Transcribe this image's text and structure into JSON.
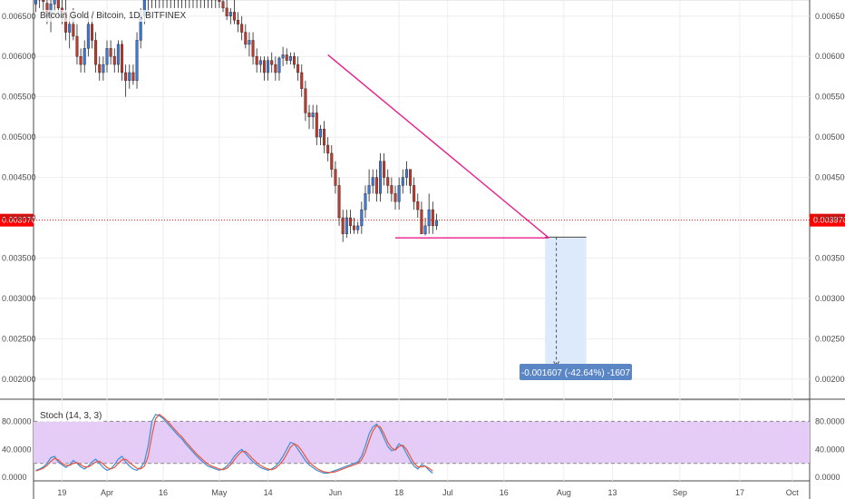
{
  "colors": {
    "up": "#3c78d8",
    "down": "#c0392b",
    "wick": "#222222",
    "trendline": "#e91e8c",
    "price_line": "#ff0000",
    "stoch_k": "#3a8fd9",
    "stoch_d": "#e8553c",
    "stoch_band": "#e4ccf7",
    "measure_fill": "#dceafb",
    "measure_label_bg": "#5b86c6"
  },
  "chart_data": [
    {
      "type": "candlestick",
      "title": "Bitcoin Gold / Bitcoin, 1D, BITFINEX",
      "ylim": [
        0.00175,
        0.0067
      ],
      "y_ticks": [
        "0.006500",
        "0.006000",
        "0.005500",
        "0.005000",
        "0.004500",
        "0.004000",
        "0.003500",
        "0.003000",
        "0.002500",
        "0.002000"
      ],
      "y_tick_values": [
        0.0065,
        0.006,
        0.0055,
        0.005,
        0.0045,
        0.004,
        0.0035,
        0.003,
        0.0025,
        0.002
      ],
      "x_ticks": [
        "19",
        "Apr",
        "16",
        "May",
        "14",
        "Jun",
        "18",
        "Jul",
        "16",
        "Aug",
        "13",
        "Sep",
        "17",
        "Oct"
      ],
      "x_tick_days": [
        -12,
        0,
        15,
        30,
        43,
        61,
        78,
        91,
        106,
        122,
        135,
        153,
        169,
        183
      ],
      "first_candle_day": -19,
      "candles": [
        [
          0.00665,
          0.0069,
          0.00655,
          0.0068
        ],
        [
          0.00675,
          0.0069,
          0.0066,
          0.0067
        ],
        [
          0.0067,
          0.0069,
          0.00655,
          0.00668
        ],
        [
          0.00666,
          0.0068,
          0.0064,
          0.0065
        ],
        [
          0.0065,
          0.0067,
          0.0063,
          0.00665
        ],
        [
          0.00665,
          0.0068,
          0.0065,
          0.00672
        ],
        [
          0.00672,
          0.0069,
          0.0065,
          0.0066
        ],
        [
          0.0066,
          0.0068,
          0.0064,
          0.00655
        ],
        [
          0.00655,
          0.0067,
          0.0062,
          0.0063
        ],
        [
          0.0063,
          0.0065,
          0.0061,
          0.0064
        ],
        [
          0.0064,
          0.0066,
          0.0062,
          0.00625
        ],
        [
          0.00625,
          0.0064,
          0.0059,
          0.006
        ],
        [
          0.006,
          0.0061,
          0.0058,
          0.0059
        ],
        [
          0.0059,
          0.0062,
          0.0058,
          0.0061
        ],
        [
          0.0061,
          0.0065,
          0.006,
          0.0064
        ],
        [
          0.0064,
          0.0065,
          0.0061,
          0.0062
        ],
        [
          0.0062,
          0.0063,
          0.0058,
          0.0059
        ],
        [
          0.0059,
          0.006,
          0.0057,
          0.0058
        ],
        [
          0.0058,
          0.006,
          0.0057,
          0.0059
        ],
        [
          0.0059,
          0.0062,
          0.0058,
          0.0061
        ],
        [
          0.0061,
          0.0062,
          0.0059,
          0.006
        ],
        [
          0.006,
          0.0061,
          0.0058,
          0.0059
        ],
        [
          0.0059,
          0.0062,
          0.0058,
          0.00615
        ],
        [
          0.00615,
          0.0062,
          0.0057,
          0.0058
        ],
        [
          0.0058,
          0.0059,
          0.0055,
          0.0057
        ],
        [
          0.0057,
          0.0059,
          0.0056,
          0.0058
        ],
        [
          0.0058,
          0.0059,
          0.00565,
          0.0057
        ],
        [
          0.0057,
          0.0063,
          0.0056,
          0.0062
        ],
        [
          0.0062,
          0.0066,
          0.0061,
          0.0065
        ],
        [
          0.0065,
          0.0068,
          0.0064,
          0.0067
        ],
        [
          0.0067,
          0.0069,
          0.0065,
          0.0068
        ],
        [
          0.00685,
          0.0069,
          0.0066,
          0.0067
        ],
        [
          0.0067,
          0.0069,
          0.0066,
          0.00685
        ],
        [
          0.00685,
          0.0069,
          0.0066,
          0.0067
        ],
        [
          0.0067,
          0.0069,
          0.0066,
          0.00685
        ],
        [
          0.00685,
          0.0069,
          0.0066,
          0.0067
        ],
        [
          0.0067,
          0.0069,
          0.0066,
          0.00685
        ],
        [
          0.00685,
          0.0069,
          0.0066,
          0.0067
        ],
        [
          0.0067,
          0.0069,
          0.0066,
          0.00685
        ],
        [
          0.00685,
          0.0069,
          0.0066,
          0.0067
        ],
        [
          0.0067,
          0.0069,
          0.0066,
          0.00685
        ],
        [
          0.00685,
          0.0069,
          0.0066,
          0.0067
        ],
        [
          0.0067,
          0.0069,
          0.0066,
          0.00685
        ],
        [
          0.00685,
          0.0069,
          0.0066,
          0.0067
        ],
        [
          0.0067,
          0.0069,
          0.0066,
          0.00685
        ],
        [
          0.00685,
          0.0069,
          0.0066,
          0.0067
        ],
        [
          0.0067,
          0.0069,
          0.0066,
          0.00685
        ],
        [
          0.00685,
          0.0069,
          0.0066,
          0.0067
        ],
        [
          0.0067,
          0.0069,
          0.0066,
          0.00685
        ],
        [
          0.0067,
          0.0069,
          0.0066,
          0.00668
        ],
        [
          0.00668,
          0.00685,
          0.00655,
          0.0066
        ],
        [
          0.0066,
          0.0067,
          0.00645,
          0.0065
        ],
        [
          0.0065,
          0.0066,
          0.0064,
          0.00655
        ],
        [
          0.00655,
          0.0067,
          0.0064,
          0.00645
        ],
        [
          0.00645,
          0.00655,
          0.0063,
          0.0064
        ],
        [
          0.0064,
          0.0065,
          0.0062,
          0.0063
        ],
        [
          0.0063,
          0.0064,
          0.0061,
          0.00615
        ],
        [
          0.00615,
          0.0063,
          0.006,
          0.0062
        ],
        [
          0.0062,
          0.0063,
          0.0059,
          0.006
        ],
        [
          0.006,
          0.0061,
          0.0058,
          0.0059
        ],
        [
          0.0059,
          0.006,
          0.0058,
          0.00595
        ],
        [
          0.00595,
          0.006,
          0.0057,
          0.0058
        ],
        [
          0.0058,
          0.006,
          0.0057,
          0.00595
        ],
        [
          0.00595,
          0.00605,
          0.0058,
          0.0059
        ],
        [
          0.0059,
          0.006,
          0.0057,
          0.0058
        ],
        [
          0.0058,
          0.006,
          0.0057,
          0.00598
        ],
        [
          0.00598,
          0.00612,
          0.00588,
          0.00602
        ],
        [
          0.00602,
          0.0061,
          0.0059,
          0.00595
        ],
        [
          0.00595,
          0.00605,
          0.0059,
          0.006
        ],
        [
          0.006,
          0.00605,
          0.00585,
          0.0059
        ],
        [
          0.0059,
          0.006,
          0.0057,
          0.0058
        ],
        [
          0.0058,
          0.0059,
          0.0055,
          0.0056
        ],
        [
          0.0056,
          0.0057,
          0.0052,
          0.0053
        ],
        [
          0.0053,
          0.0054,
          0.0051,
          0.00525
        ],
        [
          0.00525,
          0.0054,
          0.0051,
          0.0053
        ],
        [
          0.0053,
          0.0054,
          0.0049,
          0.005
        ],
        [
          0.005,
          0.00515,
          0.0049,
          0.0051
        ],
        [
          0.0051,
          0.0052,
          0.0048,
          0.0049
        ],
        [
          0.0049,
          0.005,
          0.0047,
          0.0048
        ],
        [
          0.0048,
          0.0049,
          0.0045,
          0.0046
        ],
        [
          0.0046,
          0.0047,
          0.0043,
          0.0044
        ],
        [
          0.0044,
          0.0045,
          0.0039,
          0.004
        ],
        [
          0.004,
          0.0041,
          0.0037,
          0.0038
        ],
        [
          0.0038,
          0.0041,
          0.00375,
          0.004
        ],
        [
          0.004,
          0.0041,
          0.0038,
          0.0039
        ],
        [
          0.0039,
          0.004,
          0.0038,
          0.00385
        ],
        [
          0.00385,
          0.00395,
          0.0038,
          0.0039
        ],
        [
          0.0039,
          0.0042,
          0.0038,
          0.0041
        ],
        [
          0.0041,
          0.0044,
          0.004,
          0.0043
        ],
        [
          0.0043,
          0.0046,
          0.0042,
          0.0044
        ],
        [
          0.0044,
          0.0046,
          0.0043,
          0.0045
        ],
        [
          0.0045,
          0.0046,
          0.0042,
          0.0043
        ],
        [
          0.0043,
          0.0048,
          0.0042,
          0.0047
        ],
        [
          0.0047,
          0.0048,
          0.0044,
          0.0045
        ],
        [
          0.0045,
          0.0046,
          0.0043,
          0.0044
        ],
        [
          0.0044,
          0.0045,
          0.0042,
          0.0043
        ],
        [
          0.0043,
          0.0044,
          0.0041,
          0.0042
        ],
        [
          0.0042,
          0.0045,
          0.0041,
          0.0044
        ],
        [
          0.0044,
          0.0046,
          0.0043,
          0.0045
        ],
        [
          0.0045,
          0.0047,
          0.0044,
          0.0046
        ],
        [
          0.0046,
          0.0046,
          0.0043,
          0.0044
        ],
        [
          0.0044,
          0.0045,
          0.0041,
          0.0042
        ],
        [
          0.0042,
          0.0043,
          0.004,
          0.0041
        ],
        [
          0.0041,
          0.0042,
          0.0038,
          0.0038
        ],
        [
          0.0038,
          0.004,
          0.00378,
          0.0039
        ],
        [
          0.0039,
          0.0043,
          0.0038,
          0.0041
        ],
        [
          0.0041,
          0.0042,
          0.0038,
          0.0039
        ],
        [
          0.0039,
          0.00405,
          0.00385,
          0.00397
        ]
      ],
      "current_price_label": "0.003970",
      "current_price": 0.00397,
      "trendline_from": [
        59,
        0.00602
      ],
      "trendline_to": [
        118,
        0.00375
      ],
      "support_from": [
        77,
        0.00375
      ],
      "support_to": [
        118,
        0.00375
      ],
      "measure_top": [
        120,
        0.00376
      ],
      "measure_bottom": [
        120,
        0.00215
      ],
      "measure_x_start": 117,
      "measure_x_end": 128,
      "measure_label": "-0.001607 (-42.64%) -1607"
    },
    {
      "type": "line",
      "title": "Stoch (14, 3, 3)",
      "ylim": [
        0,
        100
      ],
      "y_ticks": [
        "80.0000",
        "40.0000",
        "0.0000"
      ],
      "y_tick_values": [
        80,
        40,
        0
      ],
      "band": [
        20,
        80
      ],
      "first_day": -19,
      "series": [
        {
          "key": "k",
          "values": [
            10,
            12,
            15,
            20,
            28,
            30,
            22,
            18,
            14,
            18,
            24,
            20,
            15,
            12,
            16,
            22,
            26,
            20,
            14,
            10,
            12,
            18,
            26,
            30,
            22,
            16,
            12,
            10,
            14,
            22,
            45,
            80,
            90,
            88,
            84,
            78,
            72,
            66,
            60,
            55,
            48,
            42,
            36,
            30,
            25,
            20,
            16,
            14,
            12,
            10,
            12,
            16,
            22,
            30,
            36,
            40,
            34,
            28,
            22,
            18,
            14,
            12,
            10,
            12,
            16,
            22,
            30,
            40,
            50,
            48,
            40,
            32,
            24,
            18,
            14,
            10,
            8,
            6,
            6,
            8,
            10,
            12,
            14,
            16,
            18,
            20,
            22,
            30,
            45,
            62,
            72,
            76,
            68,
            56,
            44,
            38,
            40,
            48,
            44,
            34,
            24,
            16,
            12,
            18,
            16,
            10,
            6
          ]
        },
        {
          "key": "d",
          "values": [
            9,
            11,
            13,
            17,
            23,
            27,
            25,
            20,
            17,
            17,
            20,
            21,
            18,
            15,
            15,
            18,
            22,
            23,
            19,
            14,
            12,
            14,
            20,
            25,
            26,
            21,
            17,
            13,
            12,
            16,
            30,
            60,
            84,
            90,
            86,
            81,
            75,
            69,
            63,
            58,
            51,
            45,
            39,
            33,
            28,
            23,
            19,
            16,
            14,
            12,
            11,
            13,
            18,
            25,
            32,
            37,
            37,
            32,
            26,
            21,
            17,
            14,
            12,
            11,
            13,
            18,
            24,
            33,
            43,
            48,
            45,
            38,
            30,
            22,
            17,
            13,
            10,
            8,
            7,
            7,
            8,
            10,
            12,
            14,
            16,
            18,
            20,
            25,
            36,
            52,
            66,
            74,
            72,
            62,
            50,
            42,
            39,
            44,
            46,
            40,
            30,
            20,
            15,
            15,
            16,
            13,
            9
          ]
        }
      ]
    }
  ]
}
